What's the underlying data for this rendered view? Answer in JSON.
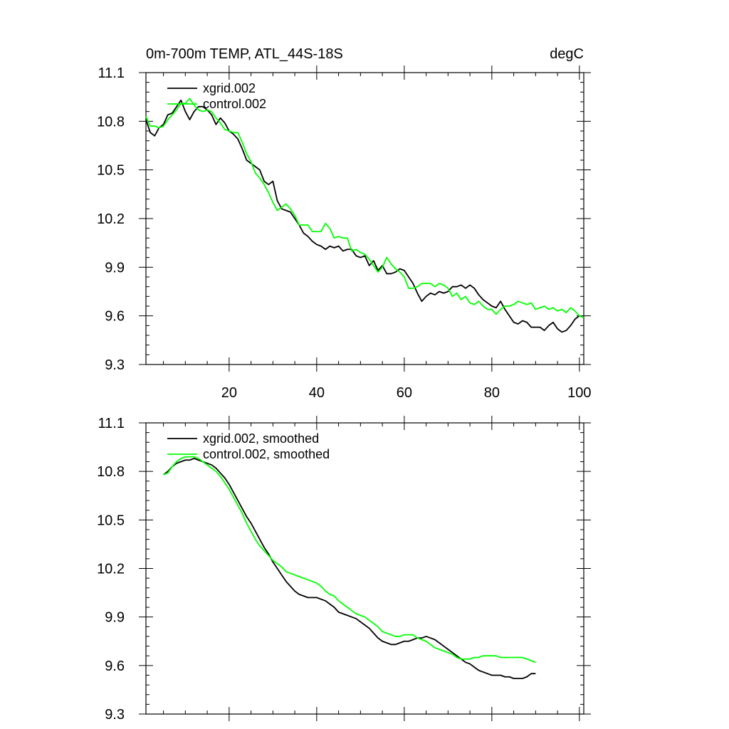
{
  "chart_data": [
    {
      "type": "line",
      "title": "0m-700m TEMP, ATL_44S-18S",
      "units": "degC",
      "xlabel": "",
      "ylabel": "",
      "xlim": [
        1,
        101
      ],
      "ylim": [
        9.3,
        11.1
      ],
      "x_ticks": [
        20,
        40,
        60,
        80,
        100
      ],
      "y_ticks": [
        9.3,
        9.6,
        9.9,
        10.2,
        10.5,
        10.8,
        11.1
      ],
      "x_tick_labels_visible": true,
      "legend": "top-left",
      "series": [
        {
          "name": "xgrid.002",
          "color": "#000000",
          "x_start": 1,
          "values": [
            10.81,
            10.73,
            10.71,
            10.76,
            10.78,
            10.84,
            10.85,
            10.89,
            10.93,
            10.86,
            10.81,
            10.86,
            10.89,
            10.89,
            10.87,
            10.84,
            10.78,
            10.82,
            10.79,
            10.74,
            10.72,
            10.69,
            10.63,
            10.56,
            10.54,
            10.52,
            10.5,
            10.43,
            10.41,
            10.43,
            10.31,
            10.26,
            10.25,
            10.24,
            10.2,
            10.16,
            10.11,
            10.09,
            10.06,
            10.04,
            10.03,
            10.01,
            10.03,
            10.02,
            10.03,
            10.0,
            10.01,
            10.01,
            9.97,
            9.96,
            9.97,
            9.91,
            9.94,
            9.88,
            9.91,
            9.86,
            9.86,
            9.87,
            9.89,
            9.88,
            9.84,
            9.8,
            9.74,
            9.69,
            9.72,
            9.74,
            9.73,
            9.75,
            9.74,
            9.75,
            9.78,
            9.78,
            9.79,
            9.77,
            9.79,
            9.77,
            9.73,
            9.7,
            9.68,
            9.66,
            9.65,
            9.69,
            9.64,
            9.6,
            9.56,
            9.55,
            9.57,
            9.56,
            9.53,
            9.53,
            9.53,
            9.51,
            9.54,
            9.56,
            9.52,
            9.5,
            9.51,
            9.54,
            9.58,
            9.6,
            9.59
          ]
        },
        {
          "name": "control.002",
          "color": "#00ff00",
          "x_start": 1,
          "values": [
            10.83,
            10.77,
            10.77,
            10.76,
            10.77,
            10.81,
            10.84,
            10.87,
            10.91,
            10.91,
            10.94,
            10.9,
            10.87,
            10.86,
            10.87,
            10.86,
            10.82,
            10.79,
            10.75,
            10.74,
            10.73,
            10.73,
            10.67,
            10.6,
            10.55,
            10.48,
            10.45,
            10.41,
            10.36,
            10.3,
            10.25,
            10.27,
            10.29,
            10.26,
            10.22,
            10.16,
            10.16,
            10.16,
            10.12,
            10.12,
            10.12,
            10.17,
            10.14,
            10.08,
            10.09,
            10.08,
            10.08,
            10.0,
            10.01,
            9.99,
            9.98,
            9.95,
            9.91,
            9.87,
            9.9,
            9.96,
            9.92,
            9.89,
            9.87,
            9.84,
            9.77,
            9.77,
            9.78,
            9.8,
            9.8,
            9.8,
            9.78,
            9.8,
            9.79,
            9.77,
            9.72,
            9.74,
            9.7,
            9.72,
            9.68,
            9.67,
            9.69,
            9.66,
            9.64,
            9.64,
            9.61,
            9.64,
            9.66,
            9.66,
            9.67,
            9.69,
            9.68,
            9.67,
            9.68,
            9.64,
            9.65,
            9.66,
            9.64,
            9.65,
            9.63,
            9.64,
            9.62,
            9.65,
            9.63,
            9.6,
            9.59
          ]
        }
      ]
    },
    {
      "type": "line",
      "title": "",
      "xlabel": "",
      "ylabel": "",
      "xlim": [
        1,
        101
      ],
      "ylim": [
        9.3,
        11.1
      ],
      "x_ticks": [
        20,
        40,
        60,
        80,
        100
      ],
      "y_ticks": [
        9.3,
        9.6,
        9.9,
        10.2,
        10.5,
        10.8,
        11.1
      ],
      "x_tick_labels_visible": false,
      "legend": "top-left",
      "series": [
        {
          "name": "xgrid.002, smoothed",
          "color": "#000000",
          "x_start": 5,
          "values": [
            10.78,
            10.8,
            10.83,
            10.85,
            10.86,
            10.87,
            10.87,
            10.88,
            10.87,
            10.86,
            10.85,
            10.84,
            10.82,
            10.79,
            10.76,
            10.72,
            10.67,
            10.62,
            10.57,
            10.52,
            10.48,
            10.43,
            10.38,
            10.33,
            10.29,
            10.24,
            10.2,
            10.16,
            10.12,
            10.09,
            10.06,
            10.04,
            10.03,
            10.02,
            10.02,
            10.02,
            10.01,
            10.0,
            9.98,
            9.96,
            9.93,
            9.92,
            9.91,
            9.9,
            9.89,
            9.87,
            9.85,
            9.83,
            9.8,
            9.77,
            9.75,
            9.74,
            9.73,
            9.73,
            9.74,
            9.75,
            9.75,
            9.76,
            9.77,
            9.77,
            9.78,
            9.77,
            9.76,
            9.74,
            9.72,
            9.7,
            9.68,
            9.66,
            9.64,
            9.62,
            9.61,
            9.59,
            9.57,
            9.56,
            9.55,
            9.54,
            9.54,
            9.54,
            9.53,
            9.53,
            9.52,
            9.52,
            9.52,
            9.53,
            9.55,
            9.55
          ]
        },
        {
          "name": "control.002, smoothed",
          "color": "#00ff00",
          "x_start": 5,
          "values": [
            10.78,
            10.79,
            10.83,
            10.86,
            10.88,
            10.89,
            10.89,
            10.89,
            10.88,
            10.86,
            10.84,
            10.82,
            10.8,
            10.77,
            10.73,
            10.69,
            10.64,
            10.59,
            10.54,
            10.48,
            10.43,
            10.38,
            10.34,
            10.31,
            10.28,
            10.25,
            10.23,
            10.21,
            10.18,
            10.17,
            10.16,
            10.15,
            10.14,
            10.13,
            10.12,
            10.11,
            10.09,
            10.06,
            10.04,
            10.03,
            10.0,
            9.98,
            9.96,
            9.94,
            9.92,
            9.91,
            9.9,
            9.88,
            9.86,
            9.84,
            9.81,
            9.8,
            9.79,
            9.78,
            9.78,
            9.79,
            9.79,
            9.79,
            9.77,
            9.76,
            9.75,
            9.73,
            9.71,
            9.7,
            9.69,
            9.68,
            9.67,
            9.65,
            9.64,
            9.64,
            9.64,
            9.65,
            9.65,
            9.66,
            9.66,
            9.66,
            9.66,
            9.65,
            9.65,
            9.65,
            9.65,
            9.65,
            9.65,
            9.64,
            9.63,
            9.62
          ]
        }
      ]
    }
  ]
}
